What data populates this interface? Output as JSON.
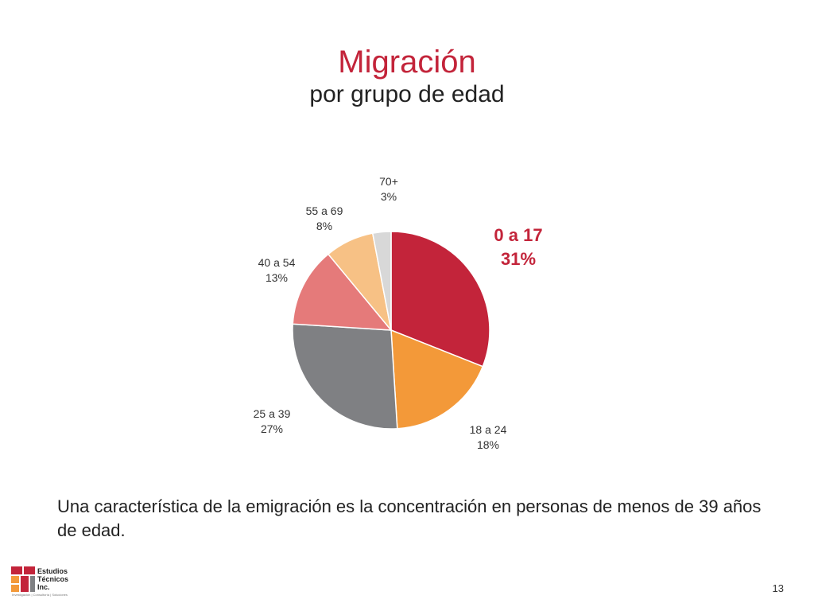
{
  "chart_data": {
    "type": "pie",
    "title": "Migración",
    "subtitle": "por grupo de edad",
    "slices": [
      {
        "label": "0 a 17",
        "value": 31,
        "percent_label": "31%",
        "color": "#c3243a",
        "highlight": true
      },
      {
        "label": "18 a 24",
        "value": 18,
        "percent_label": "18%",
        "color": "#f39939",
        "highlight": false
      },
      {
        "label": "25 a 39",
        "value": 27,
        "percent_label": "27%",
        "color": "#7f8083",
        "highlight": false
      },
      {
        "label": "40 a 54",
        "value": 13,
        "percent_label": "13%",
        "color": "#e57a7a",
        "highlight": false
      },
      {
        "label": "55 a 69",
        "value": 8,
        "percent_label": "8%",
        "color": "#f7c185",
        "highlight": false
      },
      {
        "label": "70+",
        "value": 3,
        "percent_label": "3%",
        "color": "#d8d8d8",
        "highlight": false
      }
    ]
  },
  "caption": "Una característica de la emigración es la concentración en personas de menos de 39 años de edad.",
  "logo": {
    "lines": [
      "Estudios",
      "Técnicos",
      "Inc."
    ],
    "tagline": "Investigación | Consultoría | Soluciones",
    "colors": [
      "#c3243a",
      "#f39939",
      "#7f8083"
    ]
  },
  "page_number": "13"
}
